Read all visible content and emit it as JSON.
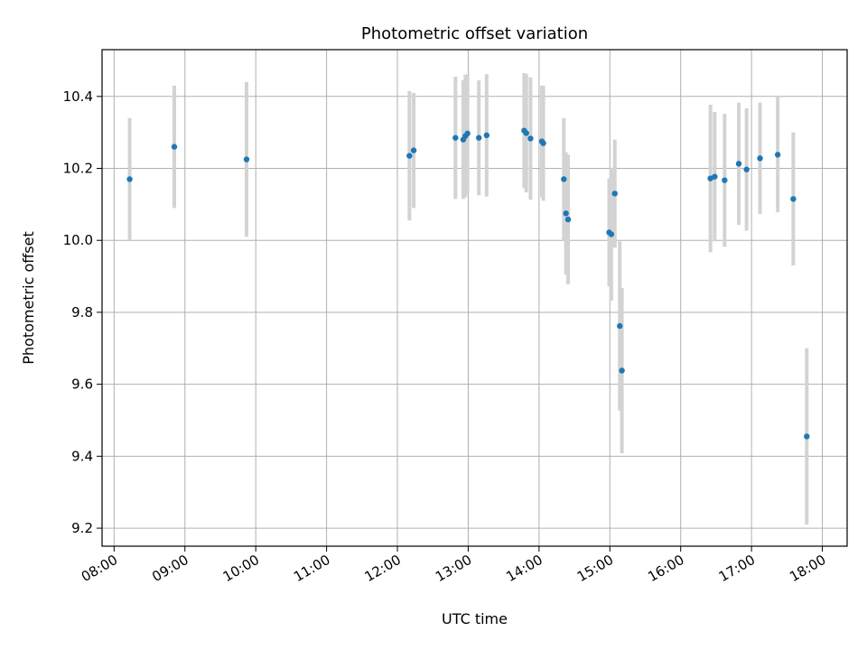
{
  "chart_data": {
    "type": "scatter",
    "title": "Photometric offset variation",
    "xlabel": "UTC time",
    "ylabel": "Photometric offset",
    "x_unit": "UTC hours",
    "xlim": [
      7.83,
      18.35
    ],
    "ylim": [
      9.15,
      10.53
    ],
    "grid": true,
    "x_ticks": [
      {
        "value": 8,
        "label": "08:00"
      },
      {
        "value": 9,
        "label": "09:00"
      },
      {
        "value": 10,
        "label": "10:00"
      },
      {
        "value": 11,
        "label": "11:00"
      },
      {
        "value": 12,
        "label": "12:00"
      },
      {
        "value": 13,
        "label": "13:00"
      },
      {
        "value": 14,
        "label": "14:00"
      },
      {
        "value": 15,
        "label": "15:00"
      },
      {
        "value": 16,
        "label": "16:00"
      },
      {
        "value": 17,
        "label": "17:00"
      },
      {
        "value": 18,
        "label": "18:00"
      }
    ],
    "y_ticks": [
      {
        "value": 9.2,
        "label": "9.2"
      },
      {
        "value": 9.4,
        "label": "9.4"
      },
      {
        "value": 9.6,
        "label": "9.6"
      },
      {
        "value": 9.8,
        "label": "9.8"
      },
      {
        "value": 10.0,
        "label": "10.0"
      },
      {
        "value": 10.2,
        "label": "10.2"
      },
      {
        "value": 10.4,
        "label": "10.4"
      }
    ],
    "point_color": "#1f77b4",
    "errorbar_color": "#d3d3d3",
    "points": [
      {
        "x": 8.22,
        "y": 10.17,
        "err": 0.17
      },
      {
        "x": 8.85,
        "y": 10.26,
        "err": 0.17
      },
      {
        "x": 9.87,
        "y": 10.225,
        "err": 0.215
      },
      {
        "x": 12.17,
        "y": 10.235,
        "err": 0.18
      },
      {
        "x": 12.23,
        "y": 10.25,
        "err": 0.16
      },
      {
        "x": 12.82,
        "y": 10.285,
        "err": 0.17
      },
      {
        "x": 12.93,
        "y": 10.28,
        "err": 0.165
      },
      {
        "x": 12.96,
        "y": 10.29,
        "err": 0.17
      },
      {
        "x": 12.99,
        "y": 10.297,
        "err": 0.165
      },
      {
        "x": 13.15,
        "y": 10.285,
        "err": 0.16
      },
      {
        "x": 13.26,
        "y": 10.292,
        "err": 0.17
      },
      {
        "x": 13.79,
        "y": 10.305,
        "err": 0.16
      },
      {
        "x": 13.82,
        "y": 10.298,
        "err": 0.165
      },
      {
        "x": 13.88,
        "y": 10.283,
        "err": 0.17
      },
      {
        "x": 14.04,
        "y": 10.275,
        "err": 0.155
      },
      {
        "x": 14.06,
        "y": 10.27,
        "err": 0.16
      },
      {
        "x": 14.35,
        "y": 10.17,
        "err": 0.17
      },
      {
        "x": 14.38,
        "y": 10.075,
        "err": 0.17
      },
      {
        "x": 14.41,
        "y": 10.058,
        "err": 0.18
      },
      {
        "x": 14.99,
        "y": 10.022,
        "err": 0.15
      },
      {
        "x": 15.02,
        "y": 10.017,
        "err": 0.185
      },
      {
        "x": 15.07,
        "y": 10.13,
        "err": 0.15
      },
      {
        "x": 15.14,
        "y": 9.762,
        "err": 0.235
      },
      {
        "x": 15.17,
        "y": 9.638,
        "err": 0.23
      },
      {
        "x": 16.42,
        "y": 10.172,
        "err": 0.205
      },
      {
        "x": 16.48,
        "y": 10.177,
        "err": 0.18
      },
      {
        "x": 16.62,
        "y": 10.167,
        "err": 0.185
      },
      {
        "x": 16.82,
        "y": 10.213,
        "err": 0.17
      },
      {
        "x": 16.93,
        "y": 10.197,
        "err": 0.17
      },
      {
        "x": 17.12,
        "y": 10.228,
        "err": 0.155
      },
      {
        "x": 17.37,
        "y": 10.238,
        "err": 0.16
      },
      {
        "x": 17.59,
        "y": 10.115,
        "err": 0.185
      },
      {
        "x": 17.78,
        "y": 9.455,
        "err": 0.245
      }
    ]
  }
}
